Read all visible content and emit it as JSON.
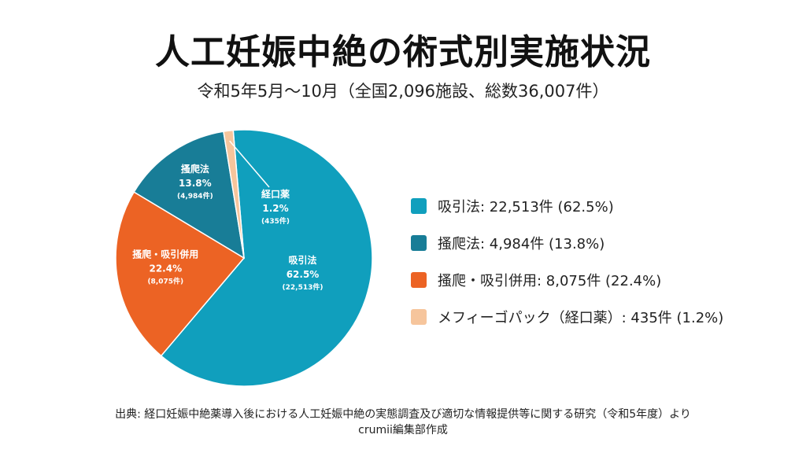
{
  "header": {
    "title": "人工妊娠中絶の術式別実施状況",
    "subtitle": "令和5年5月〜10月（全国2,096施設、総数36,007件）"
  },
  "chart_data": {
    "type": "pie",
    "slices": [
      {
        "name": "吸引法",
        "value": 22513,
        "percent": 62.5,
        "color": "#109fbd",
        "label_name": "吸引法",
        "label_percent": "62.5%",
        "label_count": "(22,513件)",
        "legend": "吸引法: 22,513件 (62.5%)"
      },
      {
        "name": "搔爬・吸引併用",
        "value": 8075,
        "percent": 22.4,
        "color": "#ec6324",
        "label_name": "搔爬・吸引併用",
        "label_percent": "22.4%",
        "label_count": "(8,075件)",
        "legend": "搔爬・吸引併用: 8,075件 (22.4%)"
      },
      {
        "name": "搔爬法",
        "value": 4984,
        "percent": 13.8,
        "color": "#187d97",
        "label_name": "搔爬法",
        "label_percent": "13.8%",
        "label_count": "(4,984件)",
        "legend": "搔爬法: 4,984件 (13.8%)"
      },
      {
        "name": "経口薬",
        "value": 435,
        "percent": 1.2,
        "color": "#f6c59c",
        "label_name": "経口薬",
        "label_percent": "1.2%",
        "label_count": "(435件)",
        "legend": "メフィーゴパック（経口薬）: 435件 (1.2%)"
      }
    ],
    "legend_order": [
      0,
      2,
      1,
      3
    ],
    "legend_placement": "right"
  },
  "footer": {
    "source_line1": "出典: 経口妊娠中絶薬導入後における人工妊娠中絶の実態調査及び適切な情報提供等に関する研究（令和5年度）より",
    "source_line2": "crumii編集部作成"
  }
}
